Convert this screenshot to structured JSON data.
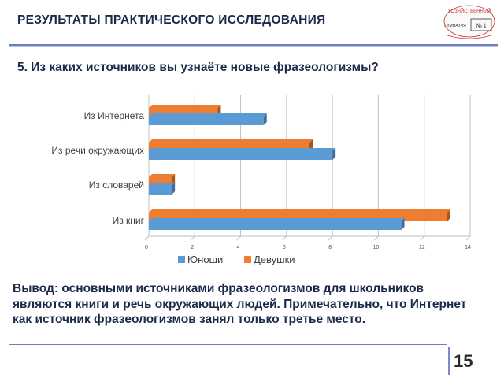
{
  "slide": {
    "title": "РЕЗУЛЬТАТЫ ПРАКТИЧЕСКОГО ИССЛЕДОВАНИЯ",
    "question": "5. Из каких источников вы узнаёте новые фразеологизмы?",
    "conclusion": "Вывод: основными источниками фразеологизмов для школьников являются книги и речь окружающих людей. Примечательно, что Интернет как источник фразеологизмов занял только третье место.",
    "page_number": "15"
  },
  "logo": {
    "top_text": "ХОЗЯЙСТВЕННЫЙ",
    "left_text": "ГИМНАЗИЯ",
    "number_text": "№ 1"
  },
  "colors": {
    "boys": "#5b9bd5",
    "girls": "#ed7d31",
    "text": "#1a2a4a"
  },
  "chart_data": {
    "type": "bar",
    "orientation": "horizontal",
    "categories": [
      "Из Интернета",
      "Из речи окружающих",
      "Из словарей",
      "Из книг"
    ],
    "series": [
      {
        "name": "Юноши",
        "values": [
          5,
          8,
          1,
          11
        ]
      },
      {
        "name": "Девушки",
        "values": [
          3,
          7,
          1,
          13
        ]
      }
    ],
    "xlim": [
      0,
      14
    ],
    "xticks": [
      0,
      2,
      4,
      6,
      8,
      10,
      12,
      14
    ],
    "grid": true,
    "legend_position": "bottom"
  }
}
